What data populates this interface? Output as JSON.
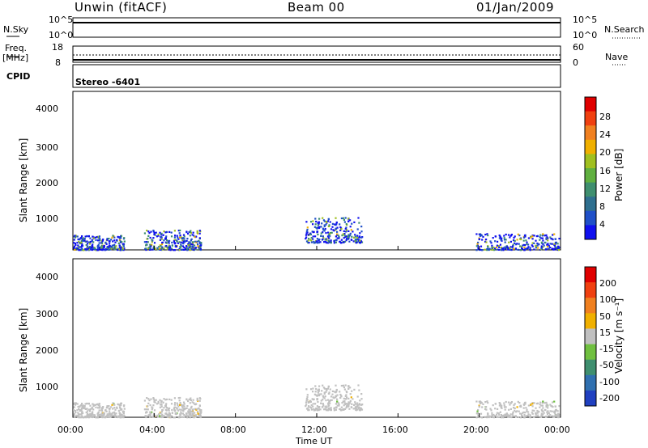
{
  "header": {
    "station": "Unwin (fitACF)",
    "beam": "Beam 00",
    "date": "01/Jan/2009"
  },
  "top_panels": {
    "nsky_label": "N.Sky",
    "nsky_ticks": [
      "10^5",
      "10^0"
    ],
    "nsearch_label": "N.Search",
    "nsearch_ticks": [
      "10^5",
      "10^0"
    ],
    "freq_label": "Freq.",
    "freq_unit": "[MHz]",
    "freq_ticks": [
      "18",
      "8"
    ],
    "nave_label": "Nave",
    "nave_ticks": [
      "60",
      "0"
    ],
    "cpid_label": "CPID",
    "cpid_text": "Stereo -6401"
  },
  "axes": {
    "ylabel": "Slant Range [km]",
    "yticks": [
      "4000",
      "3000",
      "2000",
      "1000"
    ],
    "xlabel": "Time UT",
    "xticks": [
      "00:00",
      "04:00",
      "08:00",
      "12:00",
      "16:00",
      "20:00",
      "00:00"
    ]
  },
  "colorbars": {
    "power": {
      "label": "Power [dB]",
      "ticks": [
        "28",
        "24",
        "20",
        "16",
        "12",
        "8",
        "4"
      ],
      "colors": [
        "#1010ee",
        "#2050c8",
        "#2f6f8f",
        "#3f8f6f",
        "#60b040",
        "#a0c020",
        "#f0b000",
        "#f08020",
        "#f04010",
        "#e00000"
      ]
    },
    "velocity": {
      "label": "Velocity [m s⁻¹]",
      "ticks": [
        "200",
        "100",
        "50",
        "15",
        "-15",
        "-50",
        "-100",
        "-200"
      ],
      "colors": [
        "#2040c0",
        "#3070b0",
        "#3f8f6f",
        "#70c040",
        "#c0c0c0",
        "#f0b000",
        "#f08020",
        "#f04010",
        "#e00000"
      ]
    }
  },
  "chart_data": [
    {
      "type": "heatmap",
      "title": "Power",
      "xlabel": "Time UT",
      "ylabel": "Slant Range [km]",
      "xlim": [
        0,
        24
      ],
      "ylim": [
        180,
        4600
      ],
      "colorbar_label": "Power [dB]",
      "colorbar_ticks": [
        4,
        8,
        12,
        16,
        20,
        24,
        28
      ],
      "echo_regions": [
        {
          "t_start": 0.0,
          "t_end": 2.5,
          "r_min": 200,
          "r_max": 600,
          "power_peak": 18
        },
        {
          "t_start": 3.5,
          "t_end": 6.3,
          "r_min": 200,
          "r_max": 750,
          "power_peak": 20
        },
        {
          "t_start": 11.4,
          "t_end": 14.2,
          "r_min": 400,
          "r_max": 1100,
          "power_peak": 22
        },
        {
          "t_start": 19.8,
          "t_end": 23.9,
          "r_min": 200,
          "r_max": 650,
          "power_peak": 16
        }
      ]
    },
    {
      "type": "heatmap",
      "title": "Velocity",
      "xlabel": "Time UT",
      "ylabel": "Slant Range [km]",
      "xlim": [
        0,
        24
      ],
      "ylim": [
        180,
        4600
      ],
      "colorbar_label": "Velocity [m s-1]",
      "colorbar_ticks": [
        -200,
        -100,
        -50,
        -15,
        15,
        50,
        100,
        200
      ],
      "echo_regions": [
        {
          "t_start": 0.0,
          "t_end": 2.5,
          "r_min": 200,
          "r_max": 600,
          "velocity_typical": 0
        },
        {
          "t_start": 3.5,
          "t_end": 6.3,
          "r_min": 200,
          "r_max": 750,
          "velocity_typical": 0
        },
        {
          "t_start": 11.4,
          "t_end": 14.2,
          "r_min": 400,
          "r_max": 1100,
          "velocity_typical": 0
        },
        {
          "t_start": 19.8,
          "t_end": 23.9,
          "r_min": 200,
          "r_max": 650,
          "velocity_typical": 0
        }
      ]
    }
  ]
}
